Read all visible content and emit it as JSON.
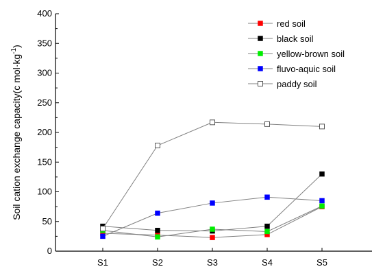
{
  "chart_data": {
    "type": "line",
    "categories": [
      "S1",
      "S2",
      "S3",
      "S4",
      "S5"
    ],
    "ylabel": "Soil cation exchange capacity(c mol·kg",
    "ylabel_superscript": "-1",
    "ylabel_suffix": ")",
    "xlabel": "",
    "ylim": [
      0,
      400
    ],
    "yticks": [
      0,
      50,
      100,
      150,
      200,
      250,
      300,
      350,
      400
    ],
    "grid": false,
    "legend_position": "top-right",
    "series": [
      {
        "name": "red soil",
        "color": "#ff0000",
        "marker": "filled-square",
        "values": [
          30,
          27,
          23,
          28,
          75
        ]
      },
      {
        "name": "black soil",
        "color": "#000000",
        "marker": "filled-square",
        "values": [
          42,
          35,
          34,
          42,
          130
        ]
      },
      {
        "name": "yellow-brown soil",
        "color": "#00ee00",
        "marker": "filled-square",
        "values": [
          35,
          24,
          37,
          33,
          76
        ]
      },
      {
        "name": "fluvo-aquic soil",
        "color": "#0000ff",
        "marker": "filled-square",
        "values": [
          25,
          64,
          81,
          91,
          85
        ]
      },
      {
        "name": "paddy soil",
        "color": "#555555",
        "marker": "open-square",
        "values": [
          38,
          178,
          217,
          214,
          210
        ]
      }
    ]
  }
}
